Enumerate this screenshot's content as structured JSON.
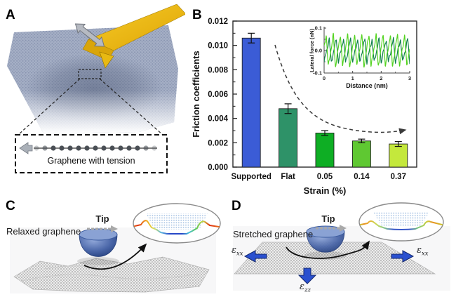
{
  "panels": {
    "a": {
      "label": "A",
      "box_caption": "Graphene with tension"
    },
    "b": {
      "label": "B"
    },
    "c": {
      "label": "C",
      "caption": "Relaxed graphene",
      "tip_label": "Tip"
    },
    "d": {
      "label": "D",
      "caption": "Stretched graphene",
      "tip_label": "Tip",
      "strain": {
        "epsilon": "ε",
        "sub_xx": "xx",
        "sub_zz": "zz"
      }
    }
  },
  "chart_data": [
    {
      "id": "friction-bars",
      "type": "bar",
      "categories": [
        "Supported",
        "Flat",
        "0.05",
        "0.14",
        "0.37"
      ],
      "values": [
        0.0106,
        0.0048,
        0.0028,
        0.00215,
        0.0019
      ],
      "errors": [
        0.0004,
        0.0004,
        0.0002,
        0.00015,
        0.0002
      ],
      "bar_colors": [
        "#3b5cd6",
        "#2e9268",
        "#0eae24",
        "#5fc832",
        "#c4e83c"
      ],
      "xlabel": "Strain (%)",
      "ylabel": "Friction coefficients",
      "ylim": [
        0,
        0.012
      ],
      "ytick_step": 0.002,
      "grid": false,
      "annotation": "dashed decreasing trend arrow"
    },
    {
      "id": "lateral-force-inset",
      "type": "line",
      "xlabel": "Distance (nm)",
      "ylabel": "Lateral force (nN)",
      "xlim": [
        0,
        3
      ],
      "ylim": [
        -0.1,
        0.1
      ],
      "xticks": [
        0,
        1,
        2,
        3
      ],
      "yticks": [
        -0.1,
        0.0,
        0.1
      ],
      "series": [
        {
          "name": "dark-green-trace",
          "color": "#12804e",
          "cycles": 12,
          "amplitude": 0.052,
          "phase": 0.0
        },
        {
          "name": "light-green-trace",
          "color": "#55d422",
          "cycles": 12,
          "amplitude": 0.072,
          "phase": 0.42
        }
      ],
      "legend": "none"
    }
  ]
}
